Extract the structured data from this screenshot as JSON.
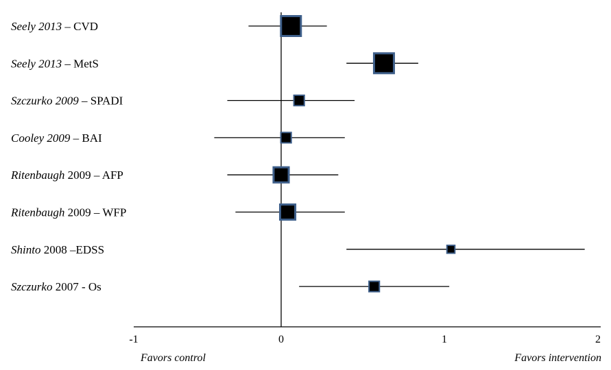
{
  "chart_data": {
    "type": "forest",
    "x_ticks": [
      -1,
      0,
      1,
      2
    ],
    "xlim": [
      -1,
      2
    ],
    "null_line": 0,
    "favors_left": "Favors control",
    "favors_right": "Favors intervention",
    "studies": [
      {
        "author": "Seely 2013",
        "suffix": " – CVD",
        "author_italic_year": true,
        "estimate": 0.06,
        "ci": [
          -0.2,
          0.28
        ],
        "weight": 5
      },
      {
        "author": "Seely 2013",
        "suffix": " – MetS",
        "author_italic_year": true,
        "estimate": 0.63,
        "ci": [
          0.4,
          0.84
        ],
        "weight": 5
      },
      {
        "author": "Szczurko 2009",
        "suffix": " – SPADI",
        "author_italic_year": true,
        "estimate": 0.11,
        "ci": [
          -0.33,
          0.45
        ],
        "weight": 2
      },
      {
        "author": "Cooley 2009",
        "suffix": " – BAI",
        "author_italic_year": true,
        "estimate": 0.03,
        "ci": [
          -0.41,
          0.39
        ],
        "weight": 2
      },
      {
        "author": "Ritenbaugh",
        "suffix": " 2009 – AFP",
        "author_italic_year": false,
        "estimate": 0.0,
        "ci": [
          -0.33,
          0.35
        ],
        "weight": 3.5
      },
      {
        "author": "Ritenbaugh",
        "suffix": " 2009 – WFP",
        "author_italic_year": false,
        "estimate": 0.04,
        "ci": [
          -0.28,
          0.39
        ],
        "weight": 3.5
      },
      {
        "author": "Shinto",
        "suffix": " 2008 –EDSS",
        "author_italic_year": false,
        "estimate": 1.04,
        "ci": [
          0.4,
          1.86
        ],
        "weight": 1.2
      },
      {
        "author": "Szczurko",
        "suffix": " 2007 - Os",
        "author_italic_year": false,
        "estimate": 0.57,
        "ci": [
          0.11,
          1.03
        ],
        "weight": 2
      }
    ],
    "colors": {
      "marker_fill": "#000000",
      "marker_border": "#3e5f8a",
      "line": "#000000"
    }
  }
}
